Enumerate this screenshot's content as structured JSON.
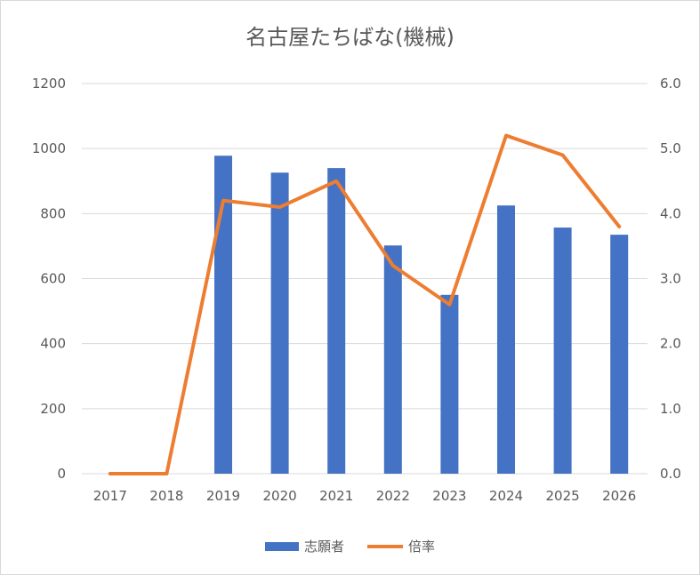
{
  "chart_data": {
    "type": "bar",
    "title": "名古屋たちばな(機械)",
    "categories": [
      "2017",
      "2018",
      "2019",
      "2020",
      "2021",
      "2022",
      "2023",
      "2024",
      "2025",
      "2026"
    ],
    "series": [
      {
        "name": "志願者",
        "type": "bar",
        "axis": "left",
        "color": "#4472c4",
        "values": [
          0,
          0,
          978,
          926,
          940,
          702,
          550,
          825,
          757,
          735
        ]
      },
      {
        "name": "倍率",
        "type": "line",
        "axis": "right",
        "color": "#ed7d31",
        "values": [
          0.0,
          0.0,
          4.2,
          4.1,
          4.5,
          3.2,
          2.6,
          5.2,
          4.9,
          3.8
        ]
      }
    ],
    "y_left": {
      "ticks": [
        "0",
        "200",
        "400",
        "600",
        "800",
        "1000",
        "1200"
      ],
      "range": [
        0,
        1200
      ]
    },
    "y_right": {
      "ticks": [
        "0.0",
        "1.0",
        "2.0",
        "3.0",
        "4.0",
        "5.0",
        "6.0"
      ],
      "range": [
        0,
        6
      ]
    },
    "grid": true,
    "legend_position": "bottom"
  }
}
